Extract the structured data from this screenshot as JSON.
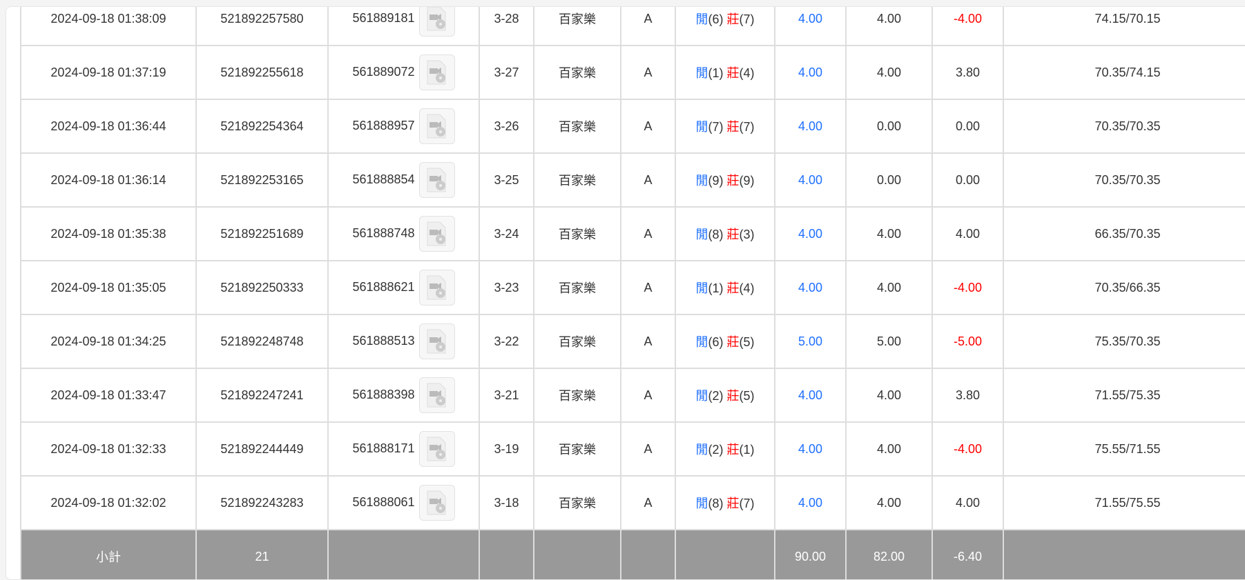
{
  "rows": [
    {
      "time": "2024-09-18 01:38:09",
      "bet_id": "521892257580",
      "round_id": "561889181",
      "shoe": "3-28",
      "game": "百家樂",
      "table": "A",
      "player_label": "閒",
      "player": "(6)",
      "banker_label": "莊",
      "banker": "(7)",
      "bet": "4.00",
      "valid": "4.00",
      "win": "-4.00",
      "balance": "74.15/70.15"
    },
    {
      "time": "2024-09-18 01:37:19",
      "bet_id": "521892255618",
      "round_id": "561889072",
      "shoe": "3-27",
      "game": "百家樂",
      "table": "A",
      "player_label": "閒",
      "player": "(1)",
      "banker_label": "莊",
      "banker": "(4)",
      "bet": "4.00",
      "valid": "4.00",
      "win": "3.80",
      "balance": "70.35/74.15"
    },
    {
      "time": "2024-09-18 01:36:44",
      "bet_id": "521892254364",
      "round_id": "561888957",
      "shoe": "3-26",
      "game": "百家樂",
      "table": "A",
      "player_label": "閒",
      "player": "(7)",
      "banker_label": "莊",
      "banker": "(7)",
      "bet": "4.00",
      "valid": "0.00",
      "win": "0.00",
      "balance": "70.35/70.35"
    },
    {
      "time": "2024-09-18 01:36:14",
      "bet_id": "521892253165",
      "round_id": "561888854",
      "shoe": "3-25",
      "game": "百家樂",
      "table": "A",
      "player_label": "閒",
      "player": "(9)",
      "banker_label": "莊",
      "banker": "(9)",
      "bet": "4.00",
      "valid": "0.00",
      "win": "0.00",
      "balance": "70.35/70.35"
    },
    {
      "time": "2024-09-18 01:35:38",
      "bet_id": "521892251689",
      "round_id": "561888748",
      "shoe": "3-24",
      "game": "百家樂",
      "table": "A",
      "player_label": "閒",
      "player": "(8)",
      "banker_label": "莊",
      "banker": "(3)",
      "bet": "4.00",
      "valid": "4.00",
      "win": "4.00",
      "balance": "66.35/70.35"
    },
    {
      "time": "2024-09-18 01:35:05",
      "bet_id": "521892250333",
      "round_id": "561888621",
      "shoe": "3-23",
      "game": "百家樂",
      "table": "A",
      "player_label": "閒",
      "player": "(1)",
      "banker_label": "莊",
      "banker": "(4)",
      "bet": "4.00",
      "valid": "4.00",
      "win": "-4.00",
      "balance": "70.35/66.35"
    },
    {
      "time": "2024-09-18 01:34:25",
      "bet_id": "521892248748",
      "round_id": "561888513",
      "shoe": "3-22",
      "game": "百家樂",
      "table": "A",
      "player_label": "閒",
      "player": "(6)",
      "banker_label": "莊",
      "banker": "(5)",
      "bet": "5.00",
      "valid": "5.00",
      "win": "-5.00",
      "balance": "75.35/70.35"
    },
    {
      "time": "2024-09-18 01:33:47",
      "bet_id": "521892247241",
      "round_id": "561888398",
      "shoe": "3-21",
      "game": "百家樂",
      "table": "A",
      "player_label": "閒",
      "player": "(2)",
      "banker_label": "莊",
      "banker": "(5)",
      "bet": "4.00",
      "valid": "4.00",
      "win": "3.80",
      "balance": "71.55/75.35"
    },
    {
      "time": "2024-09-18 01:32:33",
      "bet_id": "521892244449",
      "round_id": "561888171",
      "shoe": "3-19",
      "game": "百家樂",
      "table": "A",
      "player_label": "閒",
      "player": "(2)",
      "banker_label": "莊",
      "banker": "(1)",
      "bet": "4.00",
      "valid": "4.00",
      "win": "-4.00",
      "balance": "75.55/71.55"
    },
    {
      "time": "2024-09-18 01:32:02",
      "bet_id": "521892243283",
      "round_id": "561888061",
      "shoe": "3-18",
      "game": "百家樂",
      "table": "A",
      "player_label": "閒",
      "player": "(8)",
      "banker_label": "莊",
      "banker": "(7)",
      "bet": "4.00",
      "valid": "4.00",
      "win": "4.00",
      "balance": "71.55/75.55"
    }
  ],
  "subtotal": {
    "label": "小計",
    "count": "21",
    "bet": "90.00",
    "valid": "82.00",
    "win": "-6.40"
  },
  "colors": {
    "blue": "#1e6fff",
    "red": "#ff0000",
    "subtotal_bg": "#999999"
  }
}
